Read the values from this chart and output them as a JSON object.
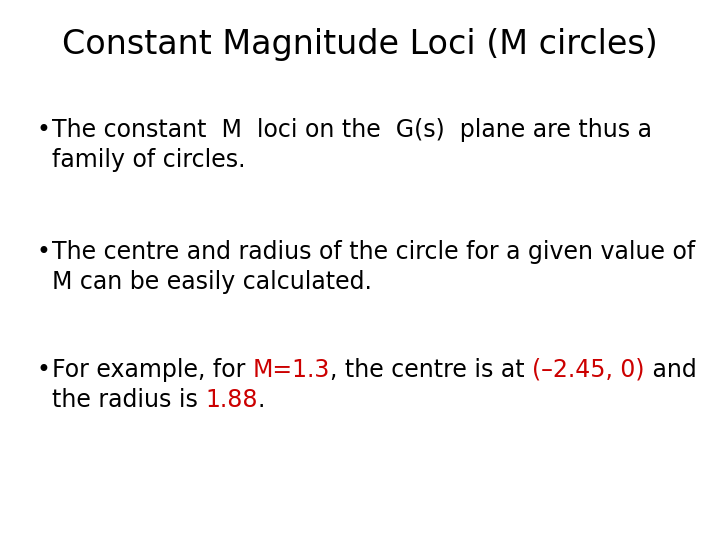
{
  "title": "Constant Magnitude Loci (M circles)",
  "title_fontsize": 24,
  "title_color": "#000000",
  "background_color": "#ffffff",
  "body_fontsize": 17,
  "black": "#000000",
  "red": "#cc0000",
  "bullet_char": "•",
  "b1_line1": "The constant  M  loci on the  G(s)  plane are thus a",
  "b1_line2": "family of circles.",
  "b2_line1": "The centre and radius of the circle for a given value of",
  "b2_line2": "M can be easily calculated.",
  "b3_seg1": "For example, for ",
  "b3_seg2": "M=1.3",
  "b3_seg3": ", the centre is at ",
  "b3_seg4": "(–2.45, 0)",
  "b3_seg5": " and",
  "b3_line2_seg1": "the radius is ",
  "b3_line2_seg2": "1.88",
  "b3_line2_seg3": "."
}
